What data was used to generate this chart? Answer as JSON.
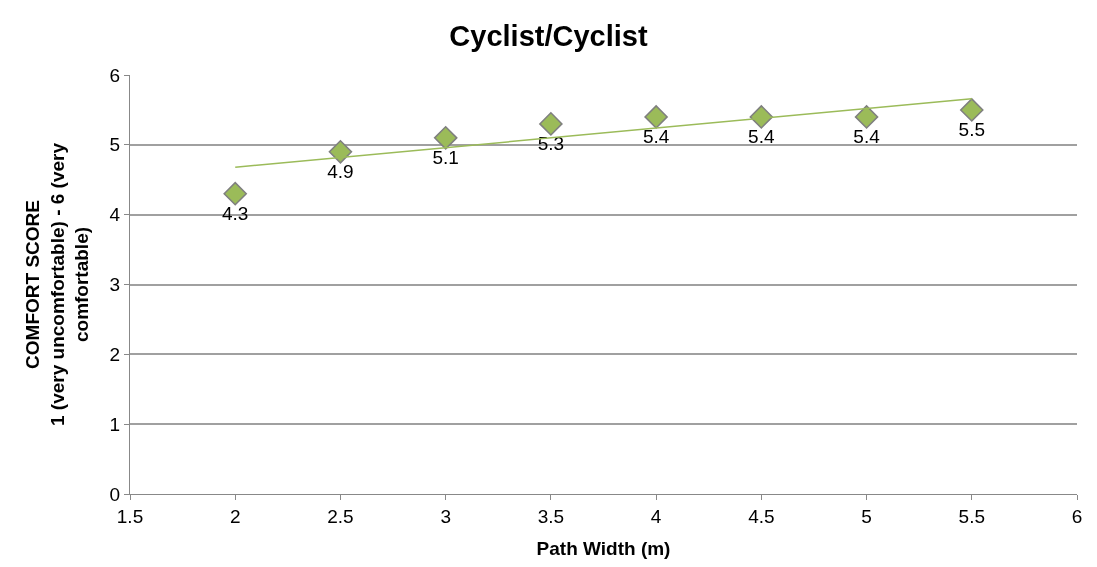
{
  "chart_data": {
    "type": "scatter",
    "title": "Cyclist/Cyclist",
    "xlabel": "Path Width (m)",
    "ylabel": "COMFORT SCORE\n1 (very uncomfortable) - 6 (very\ncomfortable)",
    "x": [
      2,
      2.5,
      3,
      3.5,
      4,
      4.5,
      5,
      5.5
    ],
    "series": [
      {
        "color": "#9bbb59",
        "values": [
          4.3,
          4.9,
          5.1,
          5.3,
          5.4,
          5.4,
          5.4,
          5.5
        ],
        "marker": "diamond",
        "value_labels": [
          "4.3",
          "4.9",
          "5.1",
          "5.3",
          "5.4",
          "5.4",
          "5.4",
          "5.5"
        ]
      },
      {
        "type": "line",
        "color": "#9bbb59",
        "x": [
          2,
          5.5
        ],
        "values": [
          4.68,
          5.66
        ],
        "marker": "none",
        "line_style": "solid"
      }
    ],
    "xlim": [
      1.5,
      6
    ],
    "xticks": [
      1.5,
      2,
      2.5,
      3,
      3.5,
      4,
      4.5,
      5,
      5.5,
      6
    ],
    "ylim": [
      0,
      6
    ],
    "yticks": [
      0,
      1,
      2,
      3,
      4,
      5,
      6
    ],
    "grid": "y",
    "legend": false
  }
}
